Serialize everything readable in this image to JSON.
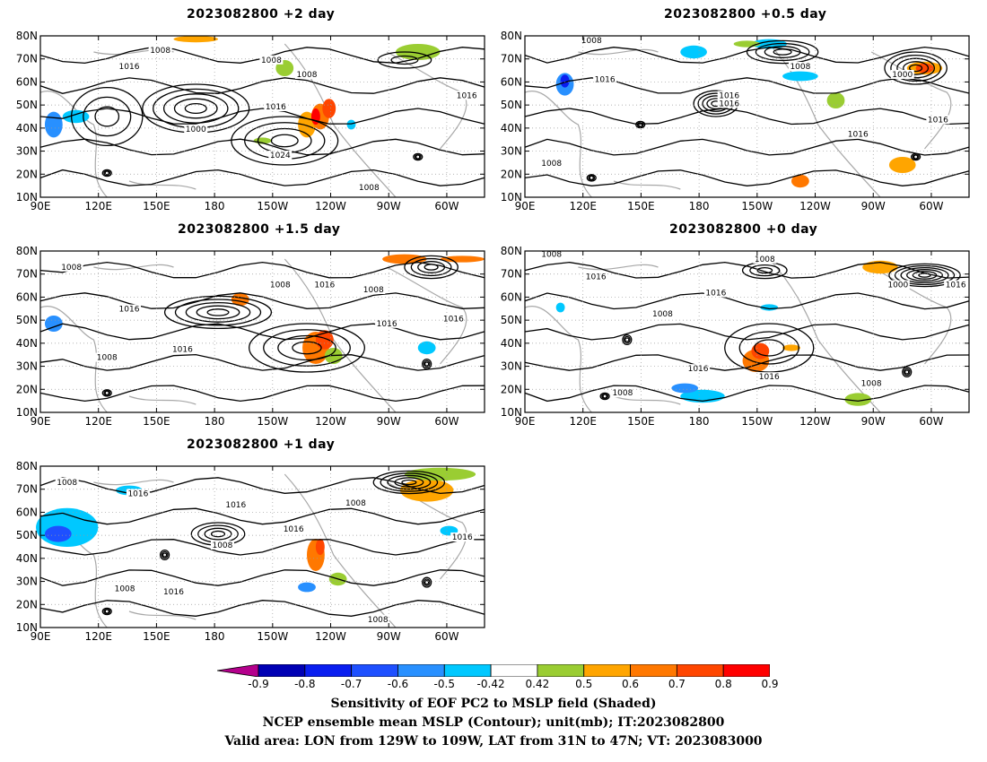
{
  "panels": [
    {
      "title": "2023082800 +2 day",
      "contours": [
        "1008",
        "1008",
        "1016",
        "1008",
        "1000",
        "1016",
        "1024",
        "1008",
        "1016"
      ]
    },
    {
      "title": "2023082800 +0.5 day",
      "contours": [
        "1008",
        "1016",
        "1008",
        "1016",
        "1016",
        "1000",
        "1016",
        "1016",
        "1008"
      ]
    },
    {
      "title": "2023082800 +1.5 day",
      "contours": [
        "1008",
        "1008",
        "1016",
        "1008",
        "1016",
        "1016",
        "1016",
        "1008",
        "1016"
      ]
    },
    {
      "title": "2023082800 +0 day",
      "contours": [
        "1008",
        "1008",
        "1016",
        "1016",
        "1008",
        "1016",
        "1016",
        "1000",
        "1016",
        "1008",
        "1008"
      ]
    },
    {
      "title": "2023082800 +1 day",
      "contours": [
        "1008",
        "1016",
        "1016",
        "1008",
        "1016",
        "1008",
        "1016",
        "1008",
        "1016",
        "1008"
      ]
    }
  ],
  "map_axes": {
    "lat_ticks": [
      "80N",
      "70N",
      "60N",
      "50N",
      "40N",
      "30N",
      "20N",
      "10N"
    ],
    "lon_ticks": [
      "90E",
      "120E",
      "150E",
      "180",
      "150W",
      "120W",
      "90W",
      "60W"
    ]
  },
  "colorbar": {
    "labels": [
      "-0.9",
      "-0.8",
      "-0.7",
      "-0.6",
      "-0.5",
      "-0.42",
      "0.42",
      "0.5",
      "0.6",
      "0.7",
      "0.8",
      "0.9"
    ],
    "colors": [
      "#0000b4",
      "#0a1ef0",
      "#1e50ff",
      "#2890ff",
      "#00c8ff",
      "#ffffff",
      "#9acd32",
      "#ffa500",
      "#ff7800",
      "#ff4600",
      "#ff0000"
    ],
    "low_extend_color": "#b4008c",
    "high_extend_color": "#ff9ec8"
  },
  "caption": {
    "line1": "Sensitivity of EOF PC2 to MSLP field (Shaded)",
    "line2": "NCEP ensemble mean MSLP (Contour); unit(mb); IT:2023082800",
    "line3": "Valid area: LON from 129W to 109W, LAT from 31N to 47N; VT: 2023083000"
  }
}
